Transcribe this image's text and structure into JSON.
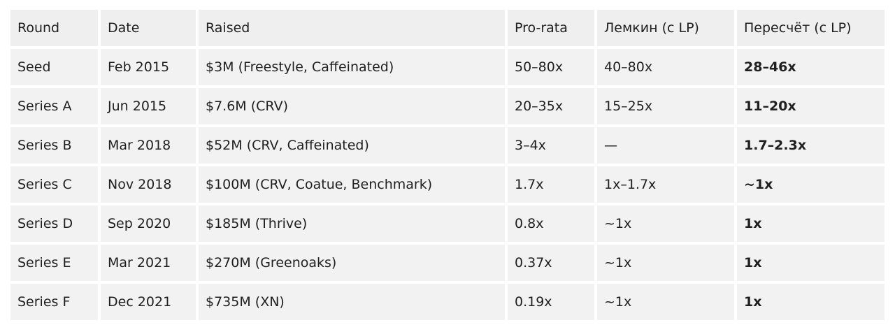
{
  "table": {
    "header": [
      "Round",
      "Date",
      "Raised",
      "Pro-rata",
      "Лемкин (с LP)",
      "Пересчёт (с LP)"
    ],
    "rows": [
      [
        "Seed",
        "Feb 2015",
        "$3M (Freestyle, Caffeinated)",
        "50–80x",
        "40–80x",
        "28–46x"
      ],
      [
        "Series A",
        "Jun 2015",
        "$7.6M (CRV)",
        "20–35x",
        "15–25x",
        "11–20x"
      ],
      [
        "Series B",
        "Mar 2018",
        "$52M (CRV, Caffeinated)",
        "3–4x",
        "—",
        "1.7–2.3x"
      ],
      [
        "Series C",
        "Nov 2018",
        "$100M (CRV, Coatue, Benchmark)",
        "1.7x",
        "1x–1.7x",
        "~1x"
      ],
      [
        "Series D",
        "Sep 2020",
        "$185M (Thrive)",
        "0.8x",
        "~1x",
        "1x"
      ],
      [
        "Series E",
        "Mar 2021",
        "$270M (Greenoaks)",
        "0.37x",
        "~1x",
        "1x"
      ],
      [
        "Series F",
        "Dec 2021",
        "$735M (XN)",
        "0.19x",
        "~1x",
        "1x"
      ]
    ]
  }
}
